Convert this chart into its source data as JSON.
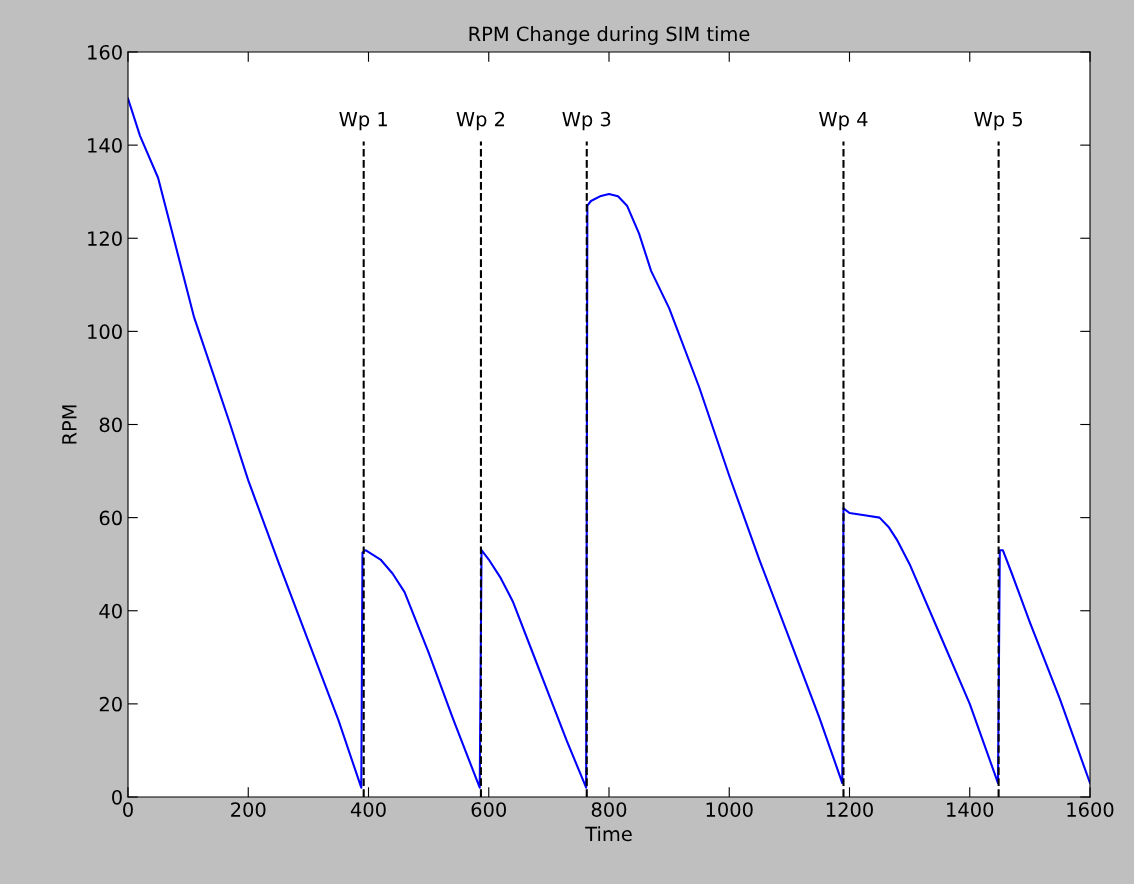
{
  "chart_data": {
    "type": "line",
    "title": "RPM Change during SIM time",
    "xlabel": "Time",
    "ylabel": "RPM",
    "series": [
      {
        "color": "#0000ff",
        "x": [
          0,
          20,
          50,
          80,
          110,
          140,
          170,
          200,
          250,
          300,
          350,
          388,
          390,
          395,
          420,
          440,
          460,
          500,
          540,
          585,
          588,
          600,
          620,
          640,
          670,
          700,
          730,
          762,
          764,
          770,
          785,
          800,
          815,
          830,
          850,
          870,
          900,
          950,
          1000,
          1050,
          1100,
          1150,
          1188,
          1190,
          1200,
          1225,
          1250,
          1265,
          1280,
          1300,
          1350,
          1400,
          1447,
          1450,
          1455,
          1470,
          1500,
          1550,
          1600
        ],
        "values": [
          150,
          142,
          133,
          118,
          103,
          91.5,
          80,
          68,
          50.5,
          33.5,
          16.5,
          2,
          52.5,
          53,
          51,
          48,
          44,
          31,
          17,
          2,
          53,
          51,
          47,
          42,
          32,
          22,
          12,
          2,
          127,
          128,
          129,
          129.5,
          129,
          127,
          121,
          113,
          105,
          88,
          69,
          51,
          34,
          17,
          3,
          62,
          61,
          60.5,
          60,
          58,
          55,
          50,
          35,
          20,
          3,
          53,
          53,
          48,
          37.5,
          21,
          3
        ]
      }
    ],
    "xlim": [
      0,
      1600
    ],
    "ylim": [
      0,
      160
    ],
    "xticks": [
      0,
      200,
      400,
      600,
      800,
      1000,
      1200,
      1400,
      1600
    ],
    "yticks": [
      0,
      20,
      40,
      60,
      80,
      100,
      120,
      140,
      160
    ],
    "ref_lines": [
      {
        "axis": "x",
        "value": 392,
        "label": "Wp 1",
        "color": "#000000",
        "line_style": "dashed"
      },
      {
        "axis": "x",
        "value": 587,
        "label": "Wp 2",
        "color": "#000000",
        "line_style": "dashed"
      },
      {
        "axis": "x",
        "value": 763,
        "label": "Wp 3",
        "color": "#000000",
        "line_style": "dashed"
      },
      {
        "axis": "x",
        "value": 1190,
        "label": "Wp 4",
        "color": "#000000",
        "line_style": "dashed"
      },
      {
        "axis": "x",
        "value": 1448,
        "label": "Wp 5",
        "color": "#000000",
        "line_style": "dashed"
      }
    ],
    "grid": false,
    "legend": false
  }
}
